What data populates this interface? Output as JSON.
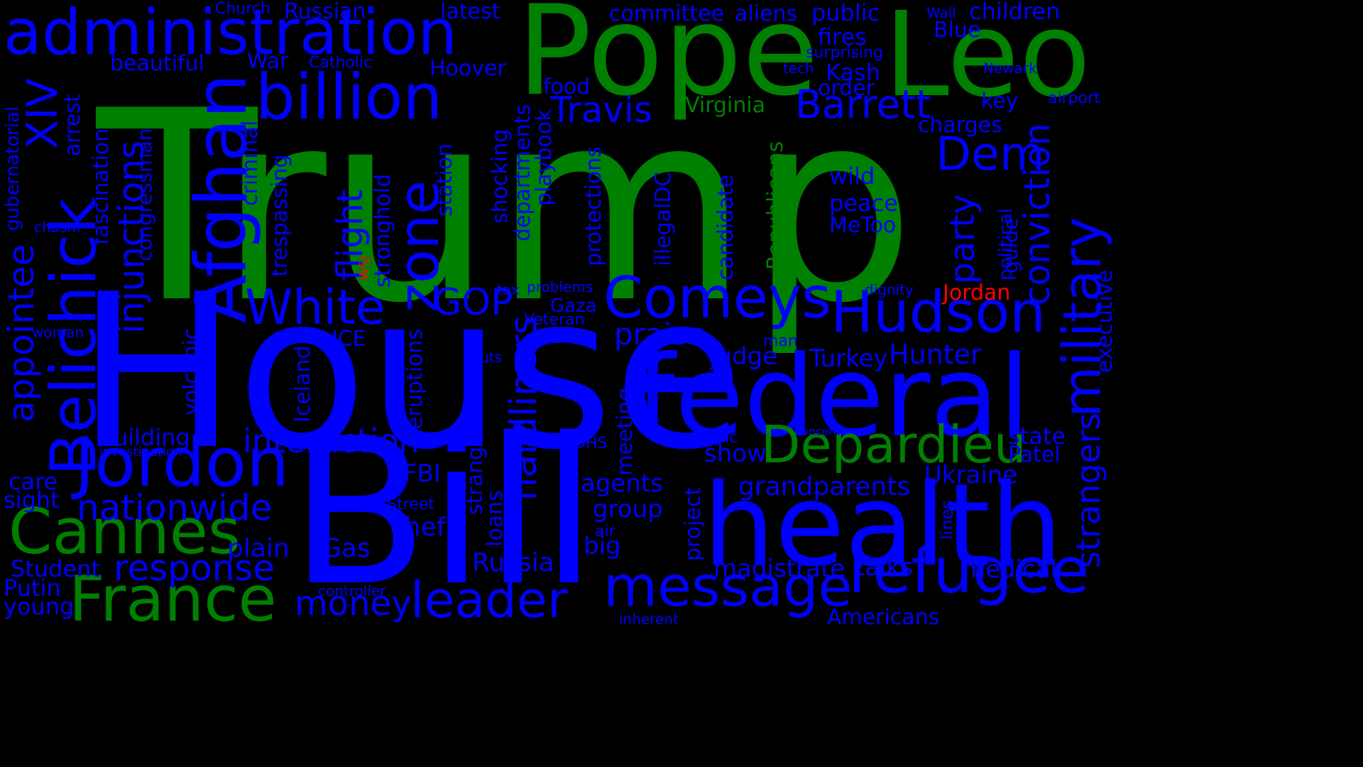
{
  "colors": {
    "background": "#000000",
    "blue": "#0000ff",
    "green": "#008000",
    "red": "#ff0000"
  },
  "words": [
    {
      "t": "Trump",
      "c": "green"
    },
    {
      "t": "House",
      "c": "blue"
    },
    {
      "t": "Bill",
      "c": "blue"
    },
    {
      "t": "Pope",
      "c": "green"
    },
    {
      "t": "Leo",
      "c": "green"
    },
    {
      "t": "federal",
      "c": "blue"
    },
    {
      "t": "health",
      "c": "blue"
    },
    {
      "t": "administration",
      "c": "blue"
    },
    {
      "t": "billion",
      "c": "blue"
    },
    {
      "t": "Afghan",
      "c": "blue"
    },
    {
      "t": "Belichick",
      "c": "blue"
    },
    {
      "t": "Jordon",
      "c": "blue"
    },
    {
      "t": "Comeys",
      "c": "blue"
    },
    {
      "t": "Hudson",
      "c": "blue"
    },
    {
      "t": "refugee",
      "c": "blue"
    },
    {
      "t": "message",
      "c": "blue"
    },
    {
      "t": "France",
      "c": "green"
    },
    {
      "t": "Cannes",
      "c": "green"
    },
    {
      "t": "Depardieu",
      "c": "green"
    },
    {
      "t": "leader",
      "c": "blue"
    },
    {
      "t": "military",
      "c": "blue"
    },
    {
      "t": "zone",
      "c": "blue"
    },
    {
      "t": "White",
      "c": "blue"
    },
    {
      "t": "nationwide",
      "c": "blue"
    },
    {
      "t": "response",
      "c": "blue"
    },
    {
      "t": "XIV",
      "c": "blue"
    },
    {
      "t": "injunctions",
      "c": "blue"
    },
    {
      "t": "appointee",
      "c": "blue"
    },
    {
      "t": "conviction",
      "c": "blue"
    },
    {
      "t": "Dem",
      "c": "blue"
    },
    {
      "t": "Barrett",
      "c": "blue"
    },
    {
      "t": "Travis",
      "c": "blue"
    },
    {
      "t": "flight",
      "c": "blue"
    },
    {
      "t": "interaction",
      "c": "blue"
    },
    {
      "t": "GOP",
      "c": "blue"
    },
    {
      "t": "hardliners",
      "c": "blue"
    },
    {
      "t": "party",
      "c": "blue"
    },
    {
      "t": "strangers",
      "c": "blue"
    },
    {
      "t": "money",
      "c": "blue"
    },
    {
      "t": "grandparents",
      "c": "blue"
    },
    {
      "t": "Hunter",
      "c": "blue"
    },
    {
      "t": "Turkey",
      "c": "blue"
    },
    {
      "t": "praise",
      "c": "blue"
    },
    {
      "t": "judge",
      "c": "blue"
    },
    {
      "t": "magistrate",
      "c": "blue"
    },
    {
      "t": "talks",
      "c": "blue"
    },
    {
      "t": "medical",
      "c": "blue"
    },
    {
      "t": "Ukraine",
      "c": "blue"
    },
    {
      "t": "Patel",
      "c": "blue"
    },
    {
      "t": "state",
      "c": "blue"
    },
    {
      "t": "agents",
      "c": "blue"
    },
    {
      "t": "group",
      "c": "blue"
    },
    {
      "t": "big",
      "c": "blue"
    },
    {
      "t": "Russia",
      "c": "blue"
    },
    {
      "t": "chef",
      "c": "blue"
    },
    {
      "t": "Gas",
      "c": "blue"
    },
    {
      "t": "FBI",
      "c": "blue"
    },
    {
      "t": "plain",
      "c": "blue"
    },
    {
      "t": "Student",
      "c": "blue"
    },
    {
      "t": "Putin",
      "c": "blue"
    },
    {
      "t": "young",
      "c": "blue"
    },
    {
      "t": "care",
      "c": "blue"
    },
    {
      "t": "sight",
      "c": "blue"
    },
    {
      "t": "Building",
      "c": "blue"
    },
    {
      "t": "investigation",
      "c": "blue"
    },
    {
      "t": "committee",
      "c": "blue"
    },
    {
      "t": "aliens",
      "c": "blue"
    },
    {
      "t": "public",
      "c": "blue"
    },
    {
      "t": "Wall",
      "c": "blue"
    },
    {
      "t": "children",
      "c": "blue"
    },
    {
      "t": "fires",
      "c": "blue"
    },
    {
      "t": "Blue",
      "c": "blue"
    },
    {
      "t": "surprising",
      "c": "blue"
    },
    {
      "t": "tech",
      "c": "blue"
    },
    {
      "t": "Kash",
      "c": "blue"
    },
    {
      "t": "Newark",
      "c": "blue"
    },
    {
      "t": "order",
      "c": "blue"
    },
    {
      "t": "key",
      "c": "blue"
    },
    {
      "t": "airport",
      "c": "blue"
    },
    {
      "t": "charges",
      "c": "blue"
    },
    {
      "t": "Virginia",
      "c": "green"
    },
    {
      "t": "food",
      "c": "blue"
    },
    {
      "t": "Hoover",
      "c": "blue"
    },
    {
      "t": "Catholic",
      "c": "blue"
    },
    {
      "t": "War",
      "c": "blue"
    },
    {
      "t": "beautiful",
      "c": "blue"
    },
    {
      "t": "Russian",
      "c": "blue"
    },
    {
      "t": "latest",
      "c": "blue"
    },
    {
      "t": "Church",
      "c": "blue"
    },
    {
      "t": "wild",
      "c": "blue"
    },
    {
      "t": "peace",
      "c": "blue"
    },
    {
      "t": "MeToo",
      "c": "blue"
    },
    {
      "t": "dignity",
      "c": "blue"
    },
    {
      "t": "Jordan",
      "c": "red"
    },
    {
      "t": "WSJ",
      "c": "red"
    },
    {
      "t": "ICE",
      "c": "blue"
    },
    {
      "t": "Gaza",
      "c": "blue"
    },
    {
      "t": "Veteran",
      "c": "blue"
    },
    {
      "t": "tax",
      "c": "blue"
    },
    {
      "t": "problems",
      "c": "blue"
    },
    {
      "t": "man",
      "c": "blue"
    },
    {
      "t": "cuts",
      "c": "blue"
    },
    {
      "t": "DHS",
      "c": "blue"
    },
    {
      "t": "traffic",
      "c": "blue"
    },
    {
      "t": "concerns",
      "c": "blue"
    },
    {
      "t": "show",
      "c": "blue"
    },
    {
      "t": "Street",
      "c": "blue"
    },
    {
      "t": "air",
      "c": "blue"
    },
    {
      "t": "controller",
      "c": "blue"
    },
    {
      "t": "inherent",
      "c": "blue"
    },
    {
      "t": "Americans",
      "c": "blue"
    },
    {
      "t": "woman",
      "c": "blue"
    },
    {
      "t": "chasm",
      "c": "blue"
    },
    {
      "t": "gubernatorial",
      "c": "blue"
    },
    {
      "t": "arrest",
      "c": "blue"
    },
    {
      "t": "fascination",
      "c": "blue"
    },
    {
      "t": "criminal",
      "c": "blue"
    },
    {
      "t": "congressman",
      "c": "blue"
    },
    {
      "t": "trespassing",
      "c": "blue"
    },
    {
      "t": "stronghold",
      "c": "blue"
    },
    {
      "t": "station",
      "c": "blue"
    },
    {
      "t": "shocking",
      "c": "blue"
    },
    {
      "t": "departments",
      "c": "blue"
    },
    {
      "t": "playbook",
      "c": "blue"
    },
    {
      "t": "protections",
      "c": "blue"
    },
    {
      "t": "illegalDC",
      "c": "blue"
    },
    {
      "t": "candidate",
      "c": "blue"
    },
    {
      "t": "Republicans",
      "c": "green"
    },
    {
      "t": "political",
      "c": "blue"
    },
    {
      "t": "guide",
      "c": "blue"
    },
    {
      "t": "executive",
      "c": "blue"
    },
    {
      "t": "volcanic",
      "c": "blue"
    },
    {
      "t": "Iceland",
      "c": "blue"
    },
    {
      "t": "eruptions",
      "c": "blue"
    },
    {
      "t": "strange",
      "c": "blue"
    },
    {
      "t": "loans",
      "c": "blue"
    },
    {
      "t": "meeting",
      "c": "blue"
    },
    {
      "t": "project",
      "c": "blue"
    },
    {
      "t": "lines",
      "c": "blue"
    }
  ]
}
